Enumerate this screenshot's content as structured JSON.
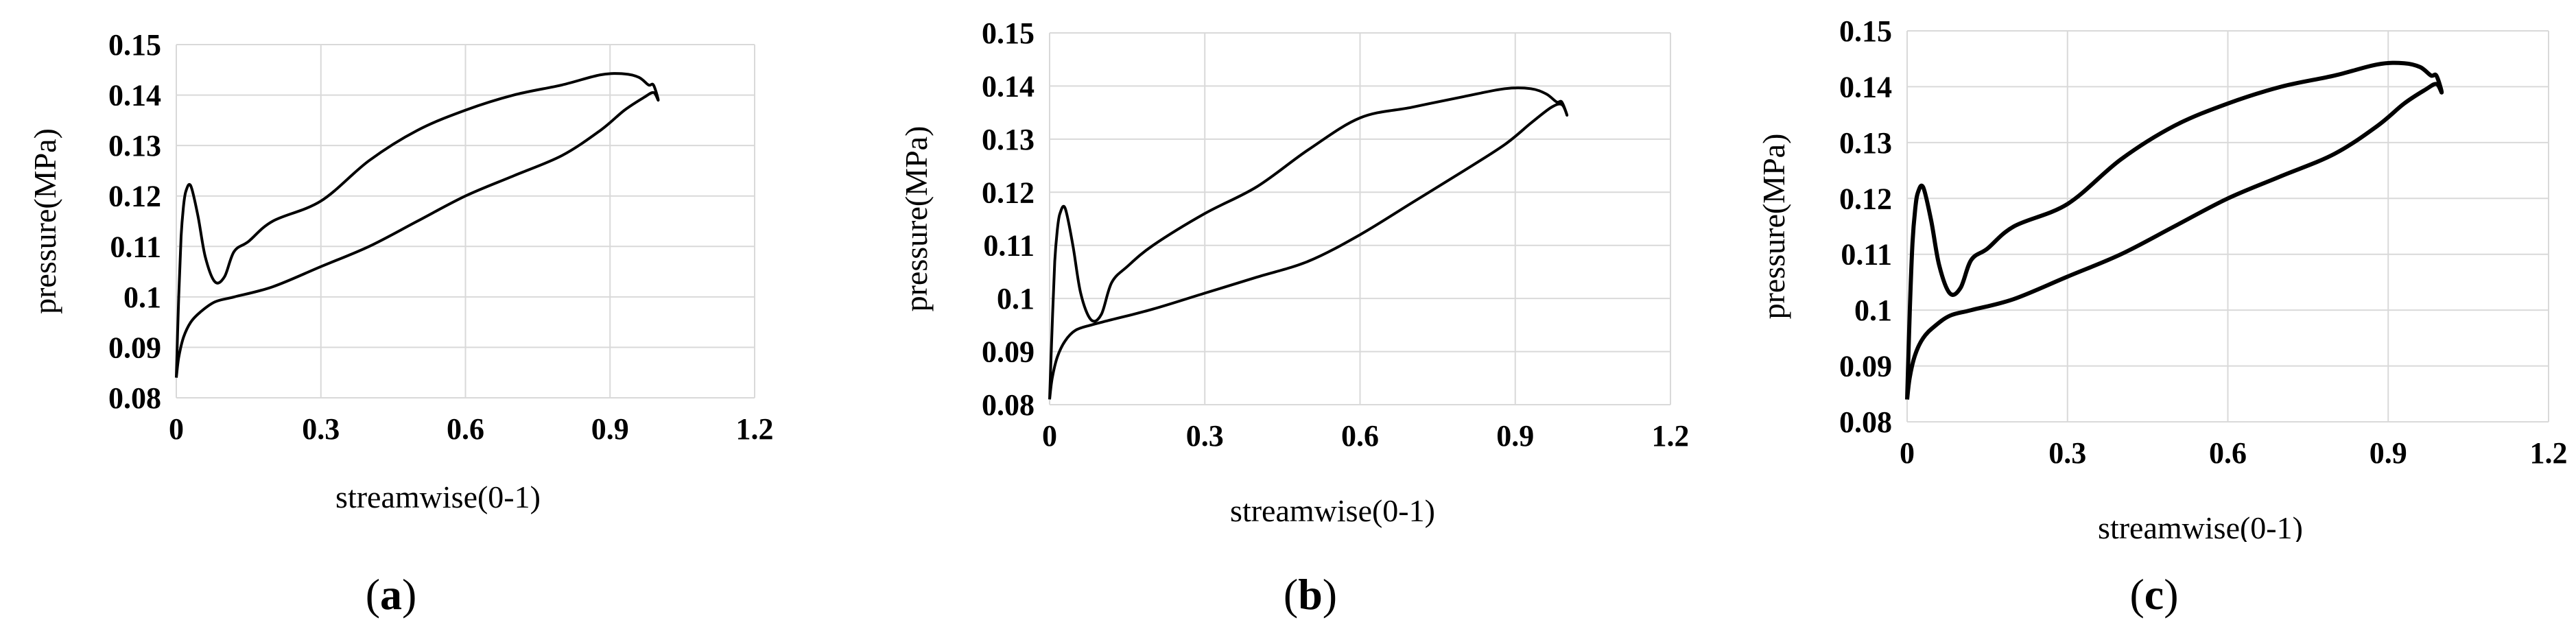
{
  "chart_data": [
    {
      "type": "line",
      "panel_label": "a",
      "xlabel": "streamwise(0-1)",
      "ylabel": "pressure(MPa)",
      "xlim": [
        0,
        1.2
      ],
      "ylim": [
        0.08,
        0.15
      ],
      "xticks": [
        "0",
        "0.3",
        "0.6",
        "0.9",
        "1.2"
      ],
      "yticks": [
        "0.08",
        "0.09",
        "0.1",
        "0.11",
        "0.12",
        "0.13",
        "0.14",
        "0.15"
      ],
      "grid": true,
      "series": [
        {
          "x": [
            0.0,
            0.005,
            0.01,
            0.015,
            0.02,
            0.03,
            0.045,
            0.06,
            0.08,
            0.1,
            0.12,
            0.15,
            0.2,
            0.3,
            0.4,
            0.5,
            0.6,
            0.7,
            0.8,
            0.88,
            0.93,
            0.96,
            0.98,
            0.99,
            1.0,
            0.99,
            0.97,
            0.93,
            0.88,
            0.8,
            0.7,
            0.6,
            0.5,
            0.4,
            0.3,
            0.2,
            0.12,
            0.08,
            0.05,
            0.03,
            0.015,
            0.005,
            0.0
          ],
          "y": [
            0.084,
            0.1,
            0.112,
            0.118,
            0.121,
            0.122,
            0.116,
            0.108,
            0.103,
            0.104,
            0.109,
            0.111,
            0.115,
            0.119,
            0.127,
            0.133,
            0.137,
            0.14,
            0.142,
            0.144,
            0.1442,
            0.1435,
            0.142,
            0.142,
            0.139,
            0.1405,
            0.1395,
            0.137,
            0.133,
            0.128,
            0.124,
            0.12,
            0.115,
            0.11,
            0.106,
            0.102,
            0.1,
            0.099,
            0.097,
            0.095,
            0.092,
            0.088,
            0.084
          ]
        }
      ]
    },
    {
      "type": "line",
      "panel_label": "b",
      "xlabel": "streamwise(0-1)",
      "ylabel": "pressure(MPa)",
      "xlim": [
        0,
        1.2
      ],
      "ylim": [
        0.08,
        0.15
      ],
      "xticks": [
        "0",
        "0.3",
        "0.6",
        "0.9",
        "1.2"
      ],
      "yticks": [
        "0.08",
        "0.09",
        "0.1",
        "0.11",
        "0.12",
        "0.13",
        "0.14",
        "0.15"
      ],
      "grid": true,
      "series": [
        {
          "x": [
            0.0,
            0.005,
            0.01,
            0.015,
            0.02,
            0.03,
            0.045,
            0.06,
            0.08,
            0.1,
            0.12,
            0.15,
            0.2,
            0.3,
            0.4,
            0.5,
            0.6,
            0.7,
            0.8,
            0.88,
            0.93,
            0.96,
            0.98,
            0.99,
            1.0,
            0.99,
            0.97,
            0.93,
            0.88,
            0.8,
            0.7,
            0.6,
            0.5,
            0.4,
            0.3,
            0.2,
            0.12,
            0.08,
            0.05,
            0.03,
            0.015,
            0.005,
            0.0
          ],
          "y": [
            0.081,
            0.095,
            0.107,
            0.113,
            0.116,
            0.117,
            0.11,
            0.101,
            0.096,
            0.097,
            0.103,
            0.106,
            0.11,
            0.116,
            0.121,
            0.128,
            0.134,
            0.136,
            0.138,
            0.1395,
            0.1395,
            0.1385,
            0.137,
            0.137,
            0.1345,
            0.1365,
            0.136,
            0.133,
            0.129,
            0.124,
            0.118,
            0.112,
            0.107,
            0.104,
            0.101,
            0.098,
            0.096,
            0.095,
            0.094,
            0.092,
            0.089,
            0.085,
            0.081
          ]
        }
      ]
    },
    {
      "type": "line",
      "panel_label": "c",
      "xlabel": "streamwise(0-1)",
      "ylabel": "pressure(MPa)",
      "xlim": [
        0,
        1.2
      ],
      "ylim": [
        0.08,
        0.15
      ],
      "xticks": [
        "0",
        "0.3",
        "0.6",
        "0.9",
        "1.2"
      ],
      "yticks": [
        "0.08",
        "0.09",
        "0.1",
        "0.11",
        "0.12",
        "0.13",
        "0.14",
        "0.15"
      ],
      "grid": true,
      "series": [
        {
          "x": [
            0.0,
            0.005,
            0.01,
            0.015,
            0.02,
            0.03,
            0.045,
            0.06,
            0.08,
            0.1,
            0.12,
            0.15,
            0.2,
            0.3,
            0.4,
            0.5,
            0.6,
            0.7,
            0.8,
            0.88,
            0.93,
            0.96,
            0.98,
            0.99,
            1.0,
            0.99,
            0.97,
            0.93,
            0.88,
            0.8,
            0.7,
            0.6,
            0.5,
            0.4,
            0.3,
            0.2,
            0.12,
            0.08,
            0.05,
            0.03,
            0.015,
            0.005,
            0.0
          ],
          "y": [
            0.084,
            0.1,
            0.112,
            0.118,
            0.121,
            0.122,
            0.116,
            0.108,
            0.103,
            0.104,
            0.109,
            0.111,
            0.115,
            0.119,
            0.127,
            0.133,
            0.137,
            0.14,
            0.142,
            0.144,
            0.1442,
            0.1435,
            0.142,
            0.142,
            0.139,
            0.1405,
            0.1395,
            0.137,
            0.133,
            0.128,
            0.124,
            0.12,
            0.115,
            0.11,
            0.106,
            0.102,
            0.1,
            0.099,
            0.097,
            0.095,
            0.092,
            0.088,
            0.084
          ]
        }
      ]
    }
  ]
}
